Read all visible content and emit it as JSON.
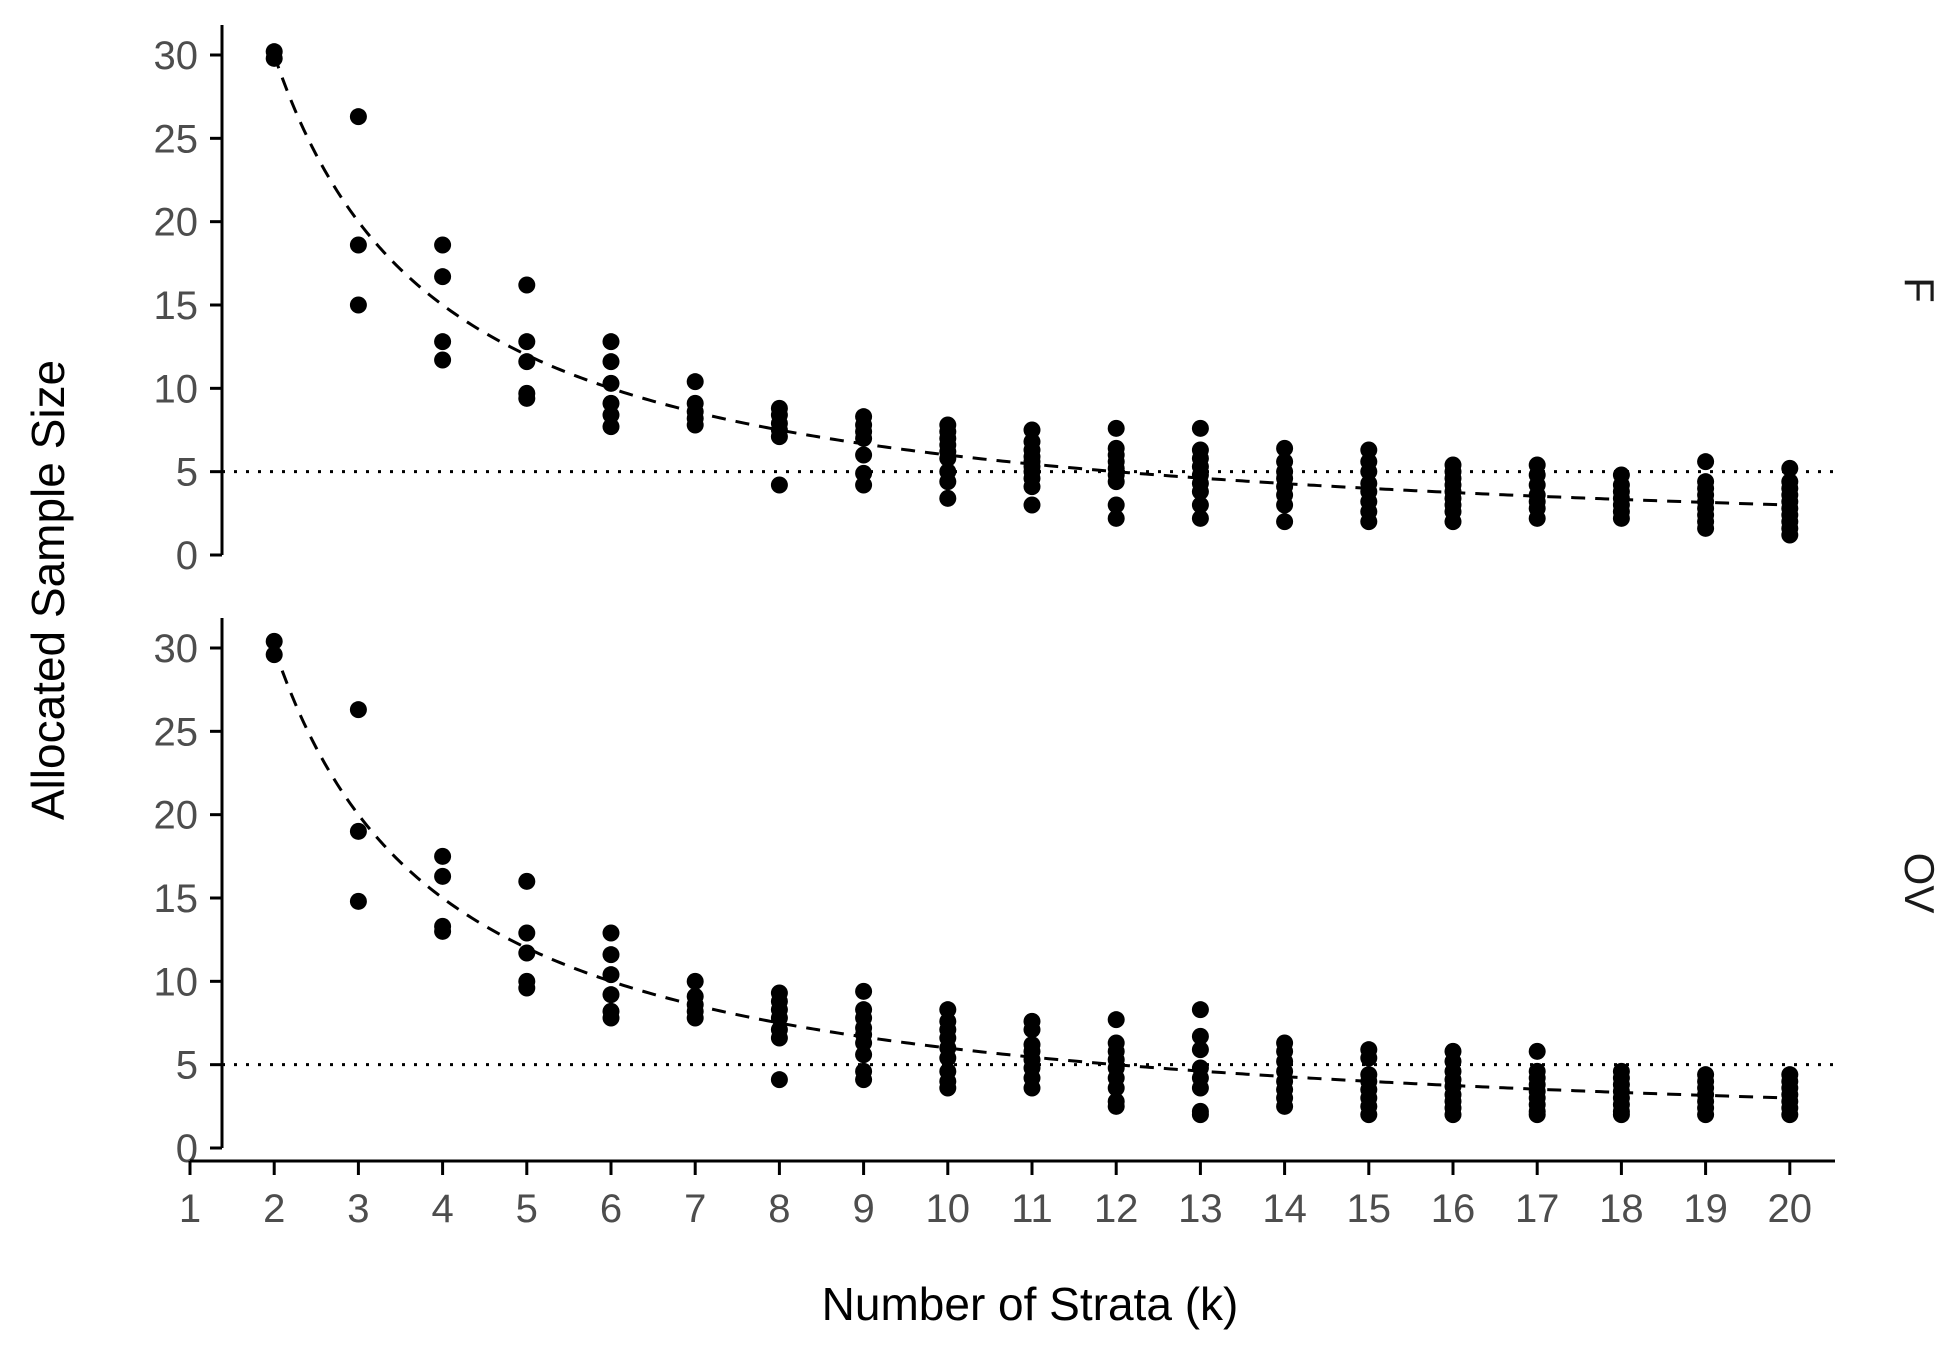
{
  "chart_data": {
    "type": "scatter",
    "xlabel": "Number of Strata (k)",
    "ylabel": "Allocated Sample Size",
    "xlim": [
      1,
      20
    ],
    "x_ticks": [
      1,
      2,
      3,
      4,
      5,
      6,
      7,
      8,
      9,
      10,
      11,
      12,
      13,
      14,
      15,
      16,
      17,
      18,
      19,
      20
    ],
    "ylim": [
      0,
      30
    ],
    "y_ticks": [
      0,
      5,
      10,
      15,
      20,
      25,
      30
    ],
    "reference_line": {
      "y": 5,
      "style": "dotted"
    },
    "fitted_curve": {
      "formula": "60 / k",
      "style": "dashed",
      "x_range": [
        2,
        20
      ]
    },
    "panels": [
      {
        "label": "F",
        "series": [
          {
            "x": 2,
            "values": [
              30.2,
              29.8
            ]
          },
          {
            "x": 3,
            "values": [
              26.3,
              18.6,
              15.0
            ]
          },
          {
            "x": 4,
            "values": [
              18.6,
              16.7,
              12.8,
              11.7
            ]
          },
          {
            "x": 5,
            "values": [
              16.2,
              12.8,
              11.6,
              9.7,
              9.4
            ]
          },
          {
            "x": 6,
            "values": [
              12.8,
              11.6,
              10.3,
              9.1,
              8.4,
              7.7
            ]
          },
          {
            "x": 7,
            "values": [
              10.4,
              9.1,
              8.6,
              8.2,
              7.8
            ]
          },
          {
            "x": 8,
            "values": [
              8.8,
              8.4,
              7.9,
              7.5,
              7.1,
              4.2
            ]
          },
          {
            "x": 9,
            "values": [
              8.3,
              7.8,
              7.4,
              7.0,
              6.0,
              4.9,
              4.2
            ]
          },
          {
            "x": 10,
            "values": [
              7.8,
              7.4,
              7.0,
              6.6,
              6.2,
              5.8,
              5.0,
              4.4,
              3.4
            ]
          },
          {
            "x": 11,
            "values": [
              7.5,
              6.8,
              6.3,
              5.9,
              5.6,
              5.3,
              5.0,
              4.6,
              4.1,
              3.0
            ]
          },
          {
            "x": 12,
            "values": [
              7.6,
              6.4,
              6.0,
              5.6,
              5.2,
              4.8,
              4.4,
              3.0,
              2.2
            ]
          },
          {
            "x": 13,
            "values": [
              7.6,
              6.3,
              5.8,
              5.3,
              4.8,
              4.3,
              3.8,
              3.0,
              2.2
            ]
          },
          {
            "x": 14,
            "values": [
              6.4,
              5.6,
              5.0,
              4.6,
              4.1,
              3.6,
              3.0,
              2.0
            ]
          },
          {
            "x": 15,
            "values": [
              6.3,
              5.6,
              5.0,
              4.3,
              3.8,
              3.2,
              2.6,
              2.0
            ]
          },
          {
            "x": 16,
            "values": [
              5.4,
              5.0,
              4.6,
              4.2,
              3.8,
              3.4,
              3.0,
              2.6,
              2.0
            ]
          },
          {
            "x": 17,
            "values": [
              5.4,
              4.8,
              4.2,
              3.6,
              3.2,
              2.8,
              2.2
            ]
          },
          {
            "x": 18,
            "values": [
              4.8,
              4.2,
              3.8,
              3.4,
              3.0,
              2.6,
              2.2
            ]
          },
          {
            "x": 19,
            "values": [
              5.6,
              4.4,
              4.0,
              3.6,
              3.2,
              2.8,
              2.4,
              2.0,
              1.6
            ]
          },
          {
            "x": 20,
            "values": [
              5.2,
              4.4,
              4.0,
              3.6,
              3.2,
              2.8,
              2.4,
              2.0,
              1.6,
              1.2
            ]
          }
        ]
      },
      {
        "label": "OV",
        "series": [
          {
            "x": 2,
            "values": [
              30.4,
              29.6
            ]
          },
          {
            "x": 3,
            "values": [
              26.3,
              19.0,
              14.8
            ]
          },
          {
            "x": 4,
            "values": [
              17.5,
              16.3,
              13.3,
              13.0
            ]
          },
          {
            "x": 5,
            "values": [
              16.0,
              12.9,
              11.7,
              10.0,
              9.6
            ]
          },
          {
            "x": 6,
            "values": [
              12.9,
              11.6,
              10.4,
              9.2,
              8.2,
              7.8
            ]
          },
          {
            "x": 7,
            "values": [
              10.0,
              9.1,
              8.6,
              8.2,
              7.8
            ]
          },
          {
            "x": 8,
            "values": [
              9.3,
              8.8,
              8.3,
              7.8,
              7.1,
              6.6,
              4.1
            ]
          },
          {
            "x": 9,
            "values": [
              9.4,
              8.3,
              7.8,
              7.2,
              6.8,
              6.3,
              5.6,
              4.6,
              4.1
            ]
          },
          {
            "x": 10,
            "values": [
              8.3,
              7.6,
              7.1,
              6.6,
              6.0,
              5.4,
              4.6,
              4.0,
              3.6
            ]
          },
          {
            "x": 11,
            "values": [
              7.6,
              7.1,
              6.2,
              5.8,
              5.3,
              4.8,
              4.2,
              3.6
            ]
          },
          {
            "x": 12,
            "values": [
              7.7,
              6.3,
              5.8,
              5.3,
              4.8,
              4.2,
              3.6,
              2.8,
              2.5
            ]
          },
          {
            "x": 13,
            "values": [
              8.3,
              6.7,
              5.9,
              4.8,
              4.2,
              3.6,
              2.2,
              2.0
            ]
          },
          {
            "x": 14,
            "values": [
              6.3,
              5.8,
              5.2,
              4.6,
              4.0,
              3.5,
              3.0,
              2.5
            ]
          },
          {
            "x": 15,
            "values": [
              5.9,
              5.4,
              4.4,
              4.0,
              3.5,
              3.0,
              2.5,
              2.0
            ]
          },
          {
            "x": 16,
            "values": [
              5.8,
              5.2,
              4.6,
              4.1,
              3.7,
              3.2,
              2.8,
              2.4,
              2.0
            ]
          },
          {
            "x": 17,
            "values": [
              5.8,
              4.6,
              4.2,
              3.8,
              3.4,
              3.0,
              2.6,
              2.2,
              2.0
            ]
          },
          {
            "x": 18,
            "values": [
              4.6,
              4.2,
              3.8,
              3.4,
              3.0,
              2.6,
              2.2,
              2.0
            ]
          },
          {
            "x": 19,
            "values": [
              4.4,
              4.0,
              3.6,
              3.2,
              2.8,
              2.4,
              2.0
            ]
          },
          {
            "x": 20,
            "values": [
              4.4,
              4.0,
              3.6,
              3.2,
              2.8,
              2.4,
              2.0
            ]
          }
        ]
      }
    ]
  }
}
